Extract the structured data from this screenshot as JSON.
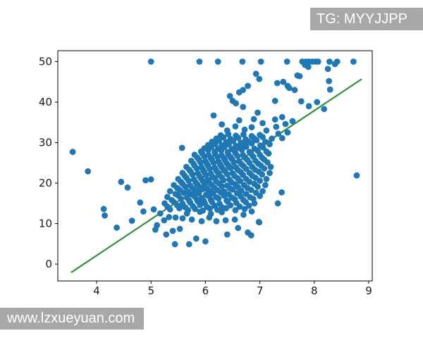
{
  "watermarks": {
    "top_right": "TG: MYYJJPP",
    "bottom_left": "www.lzxueyuan.com"
  },
  "chart_data": {
    "type": "scatter",
    "title": "",
    "xlabel": "",
    "ylabel": "",
    "xlim": [
      3.287,
      9.065
    ],
    "ylim": [
      -4.17,
      52.7
    ],
    "x_ticks": [
      4,
      5,
      6,
      7,
      8,
      9
    ],
    "y_ticks": [
      0,
      10,
      20,
      30,
      40,
      50
    ],
    "grid": false,
    "legend": null,
    "marker_color": "#1f77b4",
    "line_color": "#2e9332",
    "fit_line": {
      "x": [
        3.54,
        8.86
      ],
      "y": [
        -2.0,
        45.6
      ]
    },
    "points": [
      [
        5.0,
        50
      ],
      [
        5.89,
        50
      ],
      [
        6.23,
        50
      ],
      [
        6.68,
        50
      ],
      [
        7.02,
        50
      ],
      [
        7.5,
        50
      ],
      [
        7.78,
        50
      ],
      [
        7.85,
        50
      ],
      [
        7.9,
        50
      ],
      [
        7.96,
        50
      ],
      [
        8.02,
        50
      ],
      [
        8.07,
        50
      ],
      [
        8.28,
        50
      ],
      [
        8.42,
        50
      ],
      [
        8.72,
        50
      ],
      [
        7.83,
        49.2
      ],
      [
        7.89,
        48.7
      ],
      [
        8.25,
        48.2
      ],
      [
        8.38,
        49.4
      ],
      [
        7.69,
        46.6
      ],
      [
        7.73,
        46.4
      ],
      [
        6.93,
        47.0
      ],
      [
        6.99,
        45.7
      ],
      [
        7.43,
        45.0
      ],
      [
        7.51,
        44.0
      ],
      [
        7.32,
        44.7
      ],
      [
        6.78,
        44.0
      ],
      [
        6.69,
        43.0
      ],
      [
        6.62,
        42.4
      ],
      [
        7.54,
        43.5
      ],
      [
        7.64,
        43.0
      ],
      [
        8.27,
        45.2
      ],
      [
        8.29,
        43.1
      ],
      [
        6.5,
        40.3
      ],
      [
        6.56,
        39.7
      ],
      [
        6.69,
        38.8
      ],
      [
        7.28,
        40.3
      ],
      [
        7.76,
        40.2
      ],
      [
        8.05,
        40.0
      ],
      [
        7.9,
        39.0
      ],
      [
        6.45,
        41.5
      ],
      [
        6.96,
        37.4
      ],
      [
        7.41,
        36.3
      ],
      [
        6.15,
        36.7
      ],
      [
        6.89,
        35.8
      ],
      [
        7.6,
        35.3
      ],
      [
        7.28,
        35.7
      ],
      [
        7.3,
        33.9
      ],
      [
        7.34,
        32.2
      ],
      [
        7.47,
        34.6
      ],
      [
        7.41,
        31.1
      ],
      [
        7.51,
        32.5
      ],
      [
        6.3,
        34.5
      ],
      [
        6.55,
        34.0
      ],
      [
        6.72,
        33.2
      ],
      [
        6.85,
        33.8
      ],
      [
        7.05,
        34.8
      ],
      [
        7.12,
        33.0
      ],
      [
        6.62,
        35.5
      ],
      [
        8.18,
        38.3
      ],
      [
        6.4,
        33.0
      ],
      [
        3.56,
        27.7
      ],
      [
        3.84,
        22.9
      ],
      [
        4.13,
        13.6
      ],
      [
        4.15,
        12.0
      ],
      [
        4.37,
        9.0
      ],
      [
        4.65,
        10.7
      ],
      [
        4.57,
        18.9
      ],
      [
        4.8,
        15.2
      ],
      [
        4.86,
        13.0
      ],
      [
        4.9,
        20.7
      ],
      [
        5.0,
        20.9
      ],
      [
        4.45,
        20.3
      ],
      [
        5.44,
        4.9
      ],
      [
        5.7,
        4.9
      ],
      [
        5.83,
        6.3
      ],
      [
        6.0,
        5.6
      ],
      [
        6.4,
        7.3
      ],
      [
        6.78,
        7.8
      ],
      [
        6.84,
        7.1
      ],
      [
        6.98,
        10.4
      ],
      [
        5.28,
        7.3
      ],
      [
        5.4,
        8.2
      ],
      [
        5.53,
        8.7
      ],
      [
        5.11,
        9.6
      ],
      [
        5.08,
        8.5
      ],
      [
        6.99,
        10.3
      ],
      [
        6.6,
        8.9
      ],
      [
        5.24,
        10.8
      ],
      [
        5.33,
        11.6
      ],
      [
        5.45,
        11.5
      ],
      [
        5.58,
        11.3
      ],
      [
        5.75,
        11.0
      ],
      [
        5.93,
        10.6
      ],
      [
        6.07,
        11.5
      ],
      [
        6.2,
        10.6
      ],
      [
        6.37,
        10.8
      ],
      [
        6.54,
        11.0
      ],
      [
        5.17,
        12.5
      ],
      [
        5.66,
        12.5
      ],
      [
        7.33,
        15.0
      ],
      [
        7.4,
        17.7
      ],
      [
        5.05,
        13.5
      ],
      [
        6.7,
        12.2
      ],
      [
        6.85,
        13.0
      ],
      [
        6.3,
        12.8
      ],
      [
        5.9,
        12.9
      ],
      [
        6.1,
        12.4
      ],
      [
        8.78,
        21.9
      ],
      [
        5.35,
        13.5
      ],
      [
        5.52,
        13.8
      ],
      [
        5.68,
        13.3
      ],
      [
        5.81,
        13.6
      ],
      [
        5.95,
        13.2
      ],
      [
        6.08,
        13.7
      ],
      [
        6.22,
        13.4
      ],
      [
        6.38,
        13.8
      ],
      [
        6.55,
        13.3
      ],
      [
        6.72,
        13.6
      ],
      [
        5.3,
        14.2
      ],
      [
        5.48,
        14.5
      ],
      [
        5.63,
        14.0
      ],
      [
        5.77,
        14.3
      ],
      [
        5.9,
        14.6
      ],
      [
        6.03,
        14.1
      ],
      [
        6.17,
        14.4
      ],
      [
        6.31,
        14.0
      ],
      [
        6.46,
        14.5
      ],
      [
        6.63,
        14.2
      ],
      [
        6.8,
        14.4
      ],
      [
        5.25,
        15.0
      ],
      [
        5.42,
        15.3
      ],
      [
        5.58,
        14.9
      ],
      [
        5.72,
        15.2
      ],
      [
        5.86,
        15.5
      ],
      [
        5.99,
        15.0
      ],
      [
        6.12,
        15.3
      ],
      [
        6.26,
        14.9
      ],
      [
        6.41,
        15.4
      ],
      [
        6.57,
        15.1
      ],
      [
        6.74,
        15.3
      ],
      [
        6.9,
        15.0
      ],
      [
        5.38,
        15.8
      ],
      [
        5.55,
        16.1
      ],
      [
        5.7,
        15.7
      ],
      [
        5.84,
        16.0
      ],
      [
        5.97,
        15.6
      ],
      [
        6.1,
        15.9
      ],
      [
        6.24,
        16.2
      ],
      [
        6.39,
        15.7
      ],
      [
        6.54,
        16.0
      ],
      [
        6.7,
        15.8
      ],
      [
        6.88,
        16.1
      ],
      [
        5.3,
        16.6
      ],
      [
        5.5,
        16.9
      ],
      [
        5.66,
        16.4
      ],
      [
        5.8,
        16.7
      ],
      [
        5.93,
        16.3
      ],
      [
        6.06,
        16.8
      ],
      [
        6.2,
        16.5
      ],
      [
        6.34,
        16.9
      ],
      [
        6.49,
        16.4
      ],
      [
        6.65,
        16.7
      ],
      [
        6.82,
        16.5
      ],
      [
        7.0,
        16.8
      ],
      [
        5.45,
        17.3
      ],
      [
        5.6,
        17.6
      ],
      [
        5.75,
        17.2
      ],
      [
        5.88,
        17.5
      ],
      [
        6.01,
        17.1
      ],
      [
        6.14,
        17.4
      ],
      [
        6.28,
        17.7
      ],
      [
        6.43,
        17.2
      ],
      [
        6.58,
        17.5
      ],
      [
        6.75,
        17.3
      ],
      [
        6.93,
        17.6
      ],
      [
        5.35,
        18.0
      ],
      [
        5.53,
        18.3
      ],
      [
        5.68,
        17.9
      ],
      [
        5.82,
        18.2
      ],
      [
        5.95,
        18.5
      ],
      [
        6.08,
        18.0
      ],
      [
        6.21,
        18.3
      ],
      [
        6.35,
        17.9
      ],
      [
        6.5,
        18.4
      ],
      [
        6.66,
        18.1
      ],
      [
        6.84,
        18.3
      ],
      [
        7.05,
        18.0
      ],
      [
        5.48,
        18.8
      ],
      [
        5.63,
        19.1
      ],
      [
        5.77,
        18.7
      ],
      [
        5.9,
        19.0
      ],
      [
        6.03,
        18.6
      ],
      [
        6.16,
        18.9
      ],
      [
        6.3,
        19.2
      ],
      [
        6.45,
        18.7
      ],
      [
        6.6,
        19.0
      ],
      [
        6.77,
        18.8
      ],
      [
        6.96,
        19.1
      ],
      [
        5.42,
        19.5
      ],
      [
        5.58,
        19.8
      ],
      [
        5.72,
        19.4
      ],
      [
        5.85,
        19.7
      ],
      [
        5.98,
        19.3
      ],
      [
        6.11,
        19.6
      ],
      [
        6.25,
        19.9
      ],
      [
        6.4,
        19.4
      ],
      [
        6.55,
        19.7
      ],
      [
        6.71,
        19.5
      ],
      [
        6.9,
        19.8
      ],
      [
        7.1,
        19.5
      ],
      [
        5.55,
        20.3
      ],
      [
        5.69,
        20.6
      ],
      [
        5.82,
        20.2
      ],
      [
        5.95,
        20.5
      ],
      [
        6.07,
        20.1
      ],
      [
        6.2,
        20.4
      ],
      [
        6.33,
        20.7
      ],
      [
        6.48,
        20.2
      ],
      [
        6.64,
        20.5
      ],
      [
        6.81,
        20.3
      ],
      [
        7.0,
        20.6
      ],
      [
        5.5,
        21.0
      ],
      [
        5.65,
        21.3
      ],
      [
        5.79,
        20.9
      ],
      [
        5.92,
        21.2
      ],
      [
        6.04,
        20.8
      ],
      [
        6.17,
        21.1
      ],
      [
        6.3,
        21.4
      ],
      [
        6.44,
        20.9
      ],
      [
        6.59,
        21.2
      ],
      [
        6.75,
        21.0
      ],
      [
        6.92,
        21.3
      ],
      [
        7.12,
        21.0
      ],
      [
        5.62,
        21.8
      ],
      [
        5.76,
        22.1
      ],
      [
        5.89,
        21.7
      ],
      [
        6.01,
        22.0
      ],
      [
        6.13,
        21.6
      ],
      [
        6.26,
        21.9
      ],
      [
        6.4,
        22.2
      ],
      [
        6.54,
        21.7
      ],
      [
        6.69,
        22.0
      ],
      [
        6.86,
        21.8
      ],
      [
        7.04,
        22.1
      ],
      [
        5.58,
        22.5
      ],
      [
        5.73,
        22.8
      ],
      [
        5.86,
        22.4
      ],
      [
        5.98,
        22.7
      ],
      [
        6.1,
        22.3
      ],
      [
        6.23,
        22.6
      ],
      [
        6.36,
        22.9
      ],
      [
        6.5,
        22.4
      ],
      [
        6.65,
        22.7
      ],
      [
        6.81,
        22.5
      ],
      [
        6.98,
        22.8
      ],
      [
        7.18,
        22.5
      ],
      [
        5.7,
        23.3
      ],
      [
        5.84,
        23.6
      ],
      [
        5.96,
        23.2
      ],
      [
        6.08,
        23.5
      ],
      [
        6.2,
        23.1
      ],
      [
        6.33,
        23.4
      ],
      [
        6.46,
        23.7
      ],
      [
        6.6,
        23.2
      ],
      [
        6.75,
        23.5
      ],
      [
        6.91,
        23.3
      ],
      [
        7.08,
        23.6
      ],
      [
        5.65,
        24.0
      ],
      [
        5.8,
        24.3
      ],
      [
        5.93,
        23.9
      ],
      [
        6.05,
        24.2
      ],
      [
        6.17,
        23.8
      ],
      [
        6.29,
        24.1
      ],
      [
        6.42,
        24.4
      ],
      [
        6.56,
        23.9
      ],
      [
        6.7,
        24.2
      ],
      [
        6.86,
        24.0
      ],
      [
        7.02,
        24.3
      ],
      [
        7.2,
        24.0
      ],
      [
        5.78,
        24.8
      ],
      [
        5.91,
        25.1
      ],
      [
        6.03,
        24.7
      ],
      [
        6.15,
        25.0
      ],
      [
        6.27,
        24.6
      ],
      [
        6.39,
        24.9
      ],
      [
        6.52,
        25.2
      ],
      [
        6.66,
        24.7
      ],
      [
        6.81,
        25.0
      ],
      [
        6.97,
        24.8
      ],
      [
        7.14,
        25.1
      ],
      [
        5.74,
        25.5
      ],
      [
        5.88,
        25.8
      ],
      [
        6.0,
        25.4
      ],
      [
        6.12,
        25.7
      ],
      [
        6.24,
        25.3
      ],
      [
        6.36,
        25.6
      ],
      [
        6.49,
        25.9
      ],
      [
        6.62,
        25.4
      ],
      [
        6.77,
        25.7
      ],
      [
        6.92,
        25.5
      ],
      [
        7.08,
        25.8
      ],
      [
        5.85,
        26.3
      ],
      [
        5.98,
        26.6
      ],
      [
        6.1,
        26.2
      ],
      [
        6.22,
        26.5
      ],
      [
        6.34,
        26.1
      ],
      [
        6.46,
        26.4
      ],
      [
        6.59,
        26.7
      ],
      [
        6.73,
        26.2
      ],
      [
        6.88,
        26.5
      ],
      [
        7.04,
        26.3
      ],
      [
        5.8,
        27.0
      ],
      [
        5.94,
        27.3
      ],
      [
        6.06,
        26.9
      ],
      [
        6.18,
        27.2
      ],
      [
        6.3,
        26.8
      ],
      [
        6.42,
        27.1
      ],
      [
        6.55,
        27.4
      ],
      [
        6.69,
        26.9
      ],
      [
        6.84,
        27.2
      ],
      [
        7.0,
        27.0
      ],
      [
        7.16,
        27.3
      ],
      [
        5.92,
        27.8
      ],
      [
        6.05,
        28.1
      ],
      [
        6.17,
        27.7
      ],
      [
        6.29,
        28.0
      ],
      [
        6.41,
        27.6
      ],
      [
        6.54,
        27.9
      ],
      [
        6.67,
        28.2
      ],
      [
        6.81,
        27.7
      ],
      [
        6.96,
        28.0
      ],
      [
        7.12,
        27.8
      ],
      [
        5.98,
        28.6
      ],
      [
        6.11,
        28.9
      ],
      [
        6.23,
        28.5
      ],
      [
        6.35,
        28.8
      ],
      [
        6.48,
        28.4
      ],
      [
        6.61,
        28.7
      ],
      [
        6.75,
        29.0
      ],
      [
        6.9,
        28.5
      ],
      [
        7.06,
        28.8
      ],
      [
        5.57,
        28.7
      ],
      [
        6.05,
        29.4
      ],
      [
        6.18,
        29.7
      ],
      [
        6.3,
        29.3
      ],
      [
        6.43,
        29.6
      ],
      [
        6.56,
        29.2
      ],
      [
        6.7,
        29.5
      ],
      [
        6.85,
        29.8
      ],
      [
        7.01,
        29.3
      ],
      [
        7.18,
        29.6
      ],
      [
        6.12,
        30.2
      ],
      [
        6.25,
        30.5
      ],
      [
        6.38,
        30.1
      ],
      [
        6.51,
        30.4
      ],
      [
        6.65,
        30.0
      ],
      [
        6.79,
        30.3
      ],
      [
        6.94,
        30.6
      ],
      [
        7.1,
        30.2
      ],
      [
        6.2,
        31.0
      ],
      [
        6.33,
        31.3
      ],
      [
        6.46,
        30.9
      ],
      [
        6.6,
        31.2
      ],
      [
        6.74,
        30.8
      ],
      [
        6.89,
        31.1
      ],
      [
        7.05,
        31.4
      ],
      [
        7.22,
        31.0
      ],
      [
        6.28,
        31.8
      ],
      [
        6.42,
        32.1
      ],
      [
        6.56,
        31.7
      ],
      [
        6.7,
        32.0
      ],
      [
        6.85,
        31.6
      ],
      [
        7.0,
        31.9
      ]
    ]
  }
}
